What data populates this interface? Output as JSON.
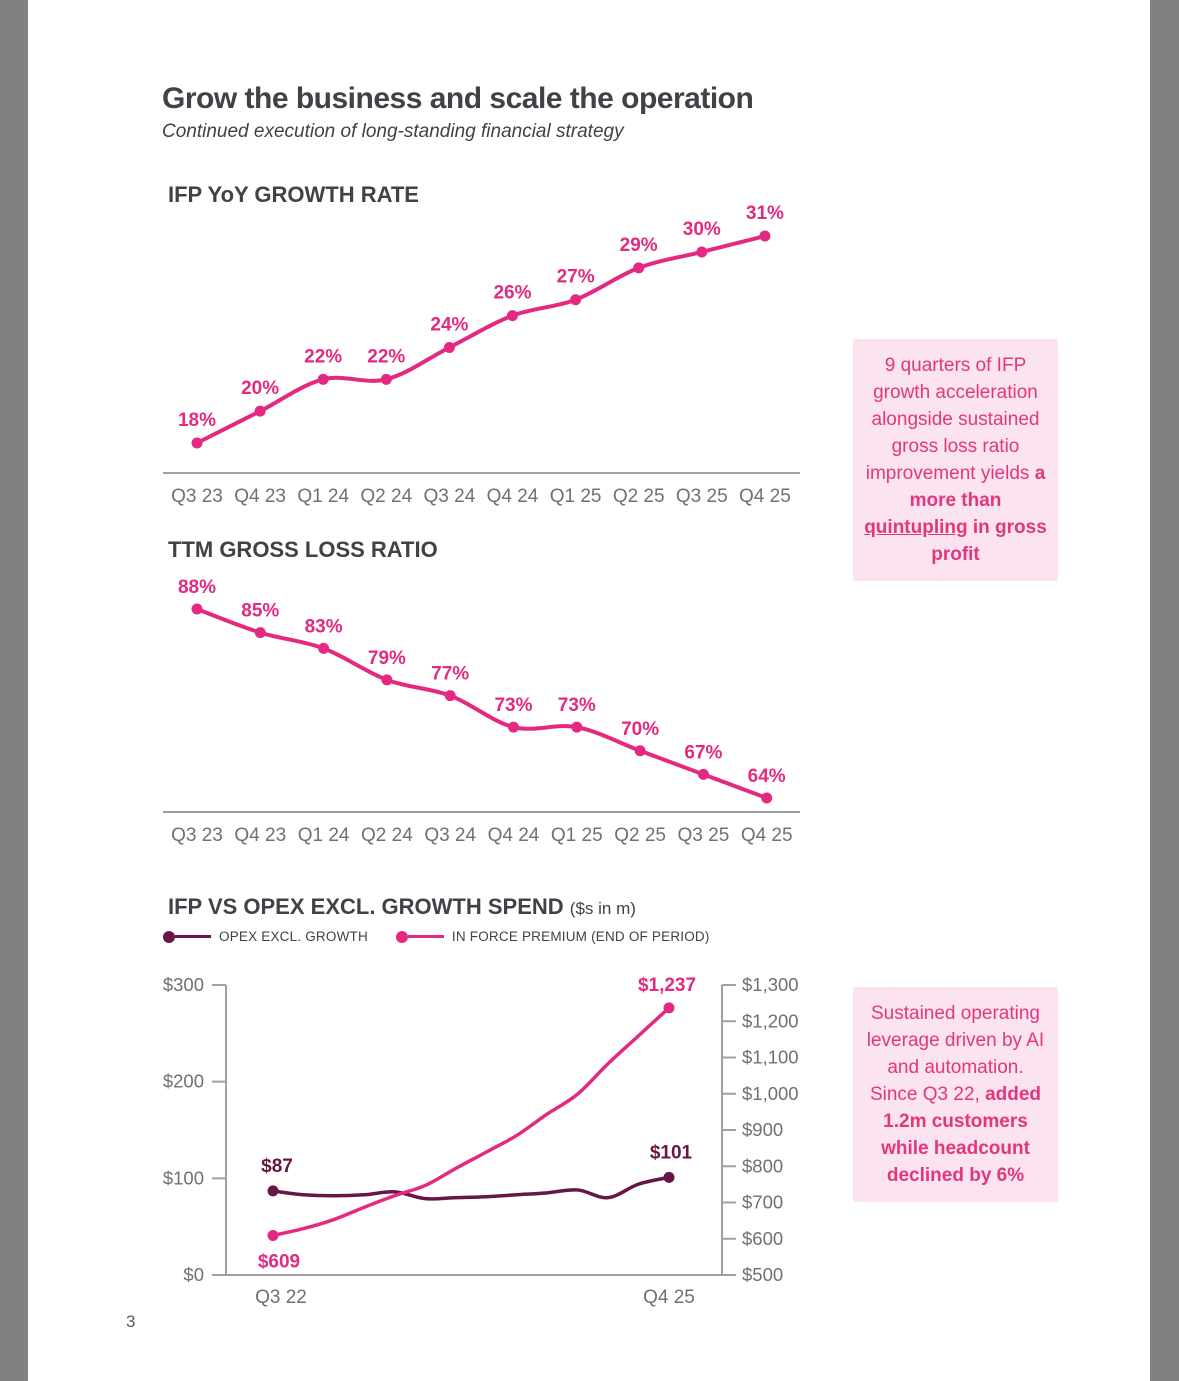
{
  "page": {
    "title": "Grow the business and scale the operation",
    "subtitle": "Continued execution of long-standing financial strategy",
    "page_number": "3"
  },
  "colors": {
    "pink": "#e32a80",
    "maroon": "#661743",
    "callout_bg": "#fbe3ef",
    "callout_text": "#e2377f",
    "axis": "#a0a0a2",
    "tick_text": "#6e7073",
    "side_bar": "#818181"
  },
  "callouts": [
    {
      "segments": [
        {
          "t": "9 quarters of IFP growth acceleration alongside sustained gross loss ratio improvement yields ",
          "b": false
        },
        {
          "t": "a more than ",
          "b": true
        },
        {
          "t": "quintupling",
          "b": true,
          "u": true
        },
        {
          "t": " in gross profit",
          "b": true
        }
      ]
    },
    {
      "segments": [
        {
          "t": "Sustained operating leverage driven by AI and automation. Since Q3 22, ",
          "b": false
        },
        {
          "t": "added 1.2m customers while headcount declined by 6%",
          "b": true
        }
      ]
    }
  ],
  "chart_data": [
    {
      "id": "ifp_yoy_growth",
      "type": "line",
      "title": "IFP YoY GROWTH RATE",
      "categories": [
        "Q3 23",
        "Q4 23",
        "Q1 24",
        "Q2 24",
        "Q3 24",
        "Q4 24",
        "Q1 25",
        "Q2 25",
        "Q3 25",
        "Q4 25"
      ],
      "values": [
        18,
        20,
        22,
        22,
        24,
        26,
        27,
        29,
        30,
        31
      ],
      "labels": [
        "18%",
        "20%",
        "22%",
        "22%",
        "24%",
        "26%",
        "27%",
        "29%",
        "30%",
        "31%"
      ],
      "unit": "%",
      "color": "#e32a80",
      "ylim": [
        14,
        34
      ],
      "grid": false,
      "legend": false
    },
    {
      "id": "ttm_gross_loss_ratio",
      "type": "line",
      "title": "TTM GROSS LOSS RATIO",
      "categories": [
        "Q3 23",
        "Q4 23",
        "Q1 24",
        "Q2 24",
        "Q3 24",
        "Q4 24",
        "Q1 25",
        "Q2 25",
        "Q3 25",
        "Q4 25"
      ],
      "values": [
        88,
        85,
        83,
        79,
        77,
        73,
        73,
        70,
        67,
        64
      ],
      "labels": [
        "88%",
        "85%",
        "83%",
        "79%",
        "77%",
        "73%",
        "73%",
        "70%",
        "67%",
        "64%"
      ],
      "unit": "%",
      "color": "#e32a80",
      "ylim": [
        60,
        92
      ],
      "grid": false,
      "legend": false
    },
    {
      "id": "ifp_vs_opex",
      "type": "line",
      "title": "IFP VS OPEX EXCL. GROWTH SPEND",
      "title_suffix": "($s in m)",
      "x_quarters_span": [
        "Q3 22",
        "Q4 25"
      ],
      "x_tick_labels": [
        "Q3 22",
        "Q4 25"
      ],
      "series": [
        {
          "name": "OPEX EXCL. GROWTH",
          "color": "#661743",
          "axis": "left",
          "values": [
            87,
            83,
            82,
            83,
            86,
            79,
            80,
            81,
            83,
            85,
            88,
            80,
            94,
            101
          ],
          "labeled_points": {
            "first": "$87",
            "last": "$101"
          }
        },
        {
          "name": "IN FORCE PREMIUM (END OF PERIOD)",
          "color": "#e32a80",
          "axis": "right",
          "values": [
            609,
            628,
            653,
            687,
            719,
            747,
            794,
            839,
            885,
            944,
            999,
            1083,
            1160,
            1237
          ],
          "labeled_points": {
            "first": "$609",
            "last": "$1,237"
          }
        }
      ],
      "left_axis": {
        "range": [
          0,
          300
        ],
        "ticks": [
          "$0",
          "$100",
          "$200",
          "$300"
        ]
      },
      "right_axis": {
        "range": [
          500,
          1300
        ],
        "ticks": [
          "$500",
          "$600",
          "$700",
          "$800",
          "$900",
          "$1,000",
          "$1,100",
          "$1,200",
          "$1,300"
        ]
      },
      "grid": false,
      "legend_position": "top"
    }
  ]
}
